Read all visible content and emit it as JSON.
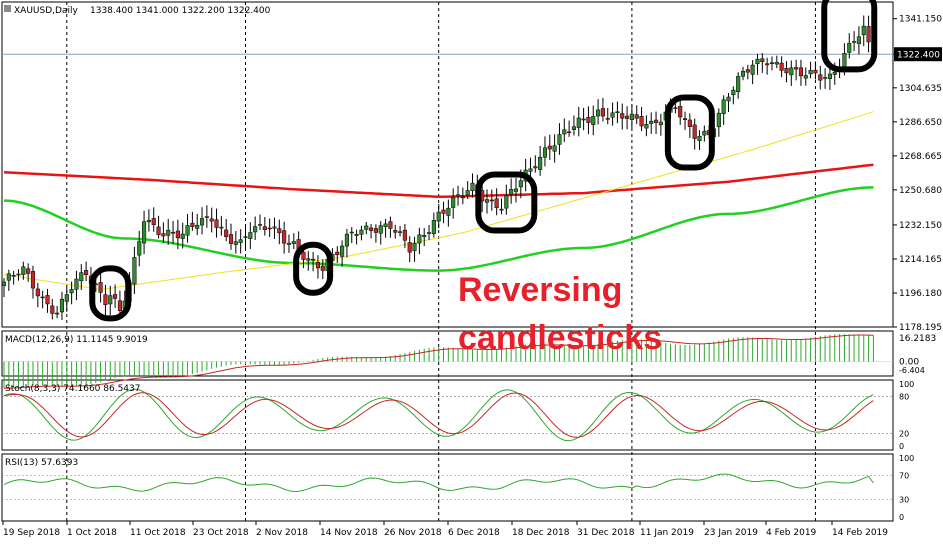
{
  "chart_data": {
    "type": "candlestick",
    "symbol_header": "XAUUSD,Daily",
    "ohlc_header": "1338.400 1341.000 1322.200 1322.400",
    "current_price_label": "1322.400",
    "price_ticks": [
      "1341.150",
      "1322.400",
      "1304.635",
      "1286.650",
      "1268.665",
      "1250.680",
      "1232.150",
      "1214.165",
      "1196.180",
      "1178.195"
    ],
    "date_ticks": [
      "19 Sep 2018",
      "1 Oct 2018",
      "11 Oct 2018",
      "23 Oct 2018",
      "2 Nov 2018",
      "14 Nov 2018",
      "26 Nov 2018",
      "6 Dec 2018",
      "18 Dec 2018",
      "31 Dec 2018",
      "11 Jan 2019",
      "23 Jan 2019",
      "4 Feb 2019",
      "14 Feb 2019"
    ],
    "ylim": [
      1178.195,
      1350
    ],
    "close_anchors": [
      [
        0,
        1202
      ],
      [
        4,
        1208
      ],
      [
        8,
        1193
      ],
      [
        11,
        1186
      ],
      [
        14,
        1199
      ],
      [
        17,
        1207
      ],
      [
        21,
        1193
      ],
      [
        22,
        1196
      ],
      [
        24,
        1186
      ],
      [
        26,
        1200
      ],
      [
        29,
        1236
      ],
      [
        33,
        1228
      ],
      [
        37,
        1226
      ],
      [
        40,
        1234
      ],
      [
        43,
        1237
      ],
      [
        46,
        1225
      ],
      [
        49,
        1221
      ],
      [
        51,
        1230
      ],
      [
        55,
        1233
      ],
      [
        58,
        1224
      ],
      [
        61,
        1218
      ],
      [
        63,
        1213
      ],
      [
        66,
        1211
      ],
      [
        69,
        1218
      ],
      [
        72,
        1227
      ],
      [
        76,
        1231
      ],
      [
        80,
        1232
      ],
      [
        84,
        1219
      ],
      [
        87,
        1228
      ],
      [
        90,
        1238
      ],
      [
        94,
        1246
      ],
      [
        97,
        1252
      ],
      [
        101,
        1244
      ],
      [
        103,
        1242
      ],
      [
        106,
        1252
      ],
      [
        109,
        1262
      ],
      [
        112,
        1272
      ],
      [
        116,
        1280
      ],
      [
        119,
        1286
      ],
      [
        123,
        1292
      ],
      [
        126,
        1290
      ],
      [
        130,
        1288
      ],
      [
        134,
        1286
      ],
      [
        137,
        1291
      ],
      [
        139,
        1294
      ],
      [
        141,
        1285
      ],
      [
        143,
        1280
      ],
      [
        146,
        1281
      ],
      [
        149,
        1296
      ],
      [
        152,
        1308
      ],
      [
        155,
        1318
      ],
      [
        158,
        1320
      ],
      [
        161,
        1314
      ],
      [
        164,
        1312
      ],
      [
        168,
        1313
      ],
      [
        171,
        1310
      ],
      [
        173,
        1316
      ],
      [
        176,
        1330
      ],
      [
        178,
        1336
      ],
      [
        180,
        1322
      ]
    ],
    "bull_color": "#2e8b2e",
    "bear_color": "#c62828",
    "ma_colors": {
      "fast": "#f0e020",
      "mid": "#e81414",
      "slow": "#22d022"
    },
    "macd_header": "MACD(12,26,9) 11.1145 9.9019",
    "macd_ticks": [
      "16.2183",
      "0.00",
      "-6.404"
    ],
    "stoch_header": "Stoch(8,3,3) 74.1660 86.5437",
    "stoch_ticks": [
      "100",
      "80",
      "20",
      "0"
    ],
    "rsi_header": "RSI(13) 57.6393",
    "rsi_ticks": [
      "100",
      "70",
      "30",
      "0"
    ]
  },
  "annotation": {
    "line1": "Reversing",
    "line2": "candlesticks"
  },
  "highlight_color": "#000000"
}
